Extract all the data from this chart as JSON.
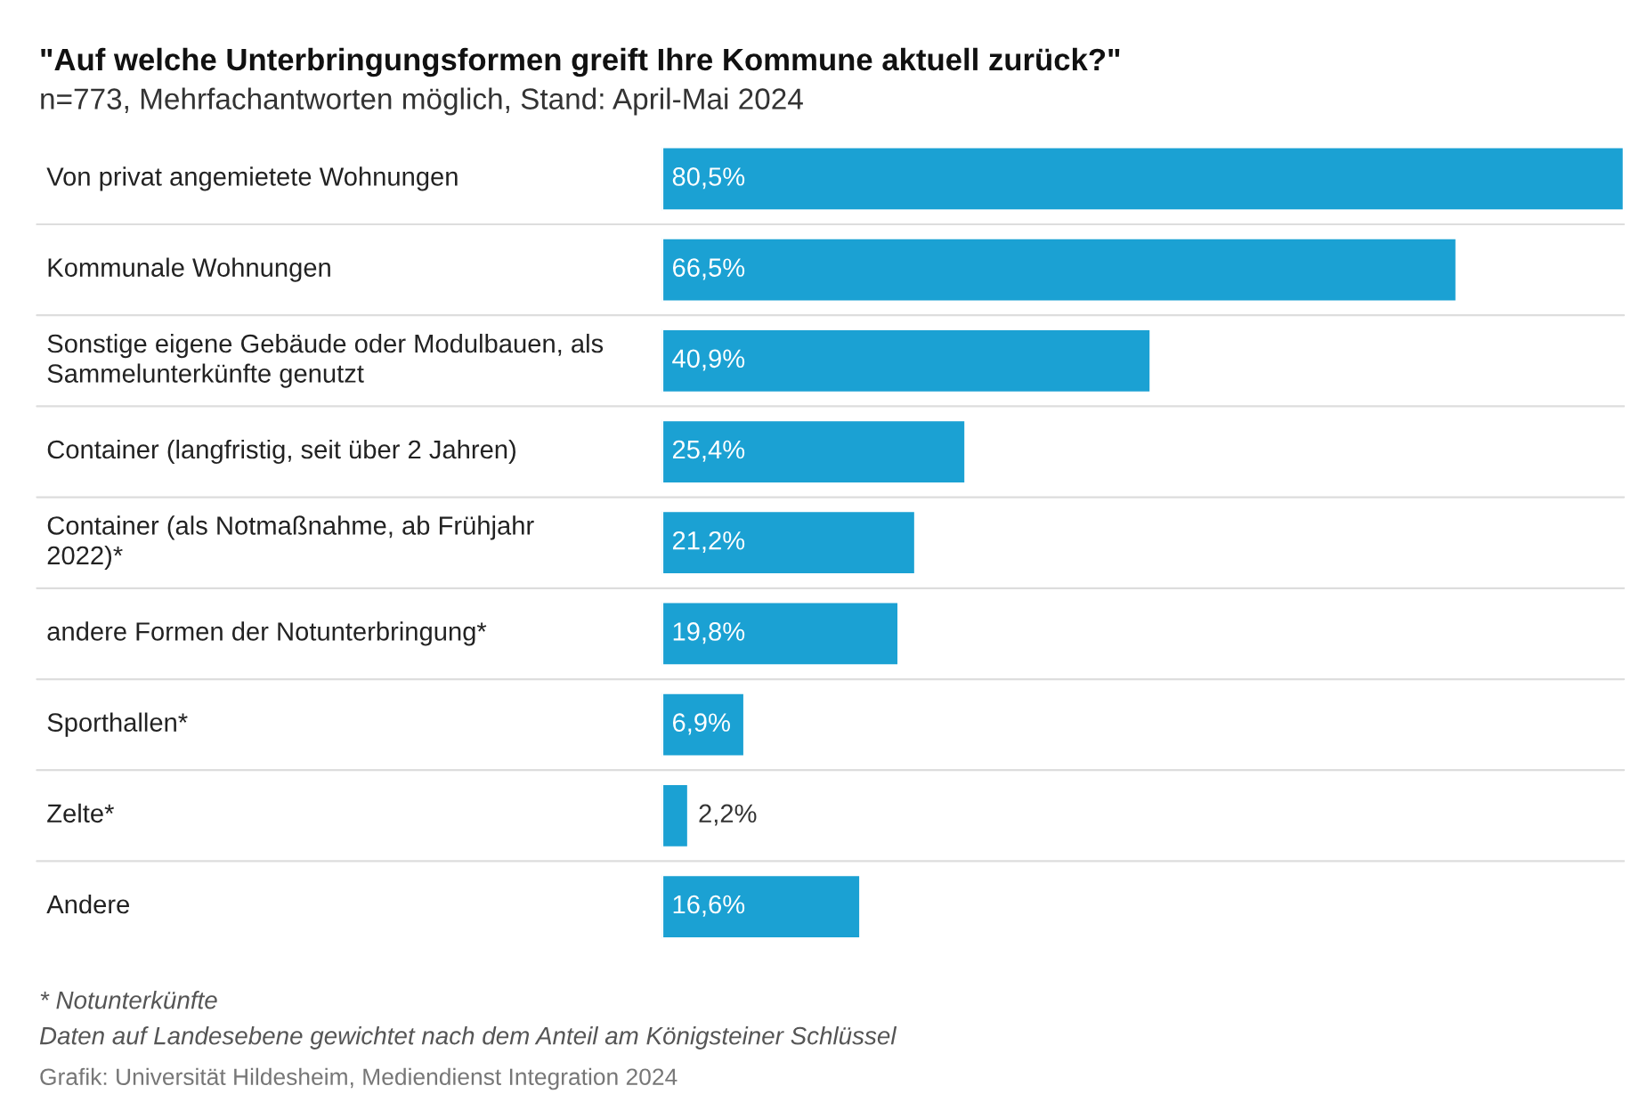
{
  "chart_data": {
    "type": "bar",
    "orientation": "horizontal",
    "title": "\"Auf welche Unterbringungsformen greift Ihre Kommune aktuell zurück?\"",
    "subtitle": "n=773, Mehrfachantworten möglich, Stand: April-Mai 2024",
    "categories": [
      "Von privat angemietete Wohnungen",
      "Kommunale Wohnungen",
      "Sonstige eigene Gebäude oder Modulbauen, als\nSammelunterkünfte genutzt",
      "Container (langfristig, seit über 2 Jahren)",
      "Container (als Notmaßnahme, ab Frühjahr\n2022)*",
      "andere Formen der Notunterbringung*",
      "Sporthallen*",
      "Zelte*",
      "Andere"
    ],
    "values": [
      80.5,
      66.5,
      40.9,
      25.4,
      21.2,
      19.8,
      6.9,
      2.2,
      16.6
    ],
    "value_labels": [
      "80,5%",
      "66,5%",
      "40,9%",
      "25,4%",
      "21,2%",
      "19,8%",
      "6,9%",
      "2,2%",
      "16,6%"
    ],
    "color": "#1ba1d3",
    "annotations": [
      "* Notunterkünfte",
      "Daten auf Landesebene gewichtet nach dem Anteil am Königsteiner Schlüssel",
      "Grafik: Universität Hildesheim, Mediendienst Integration 2024"
    ]
  }
}
